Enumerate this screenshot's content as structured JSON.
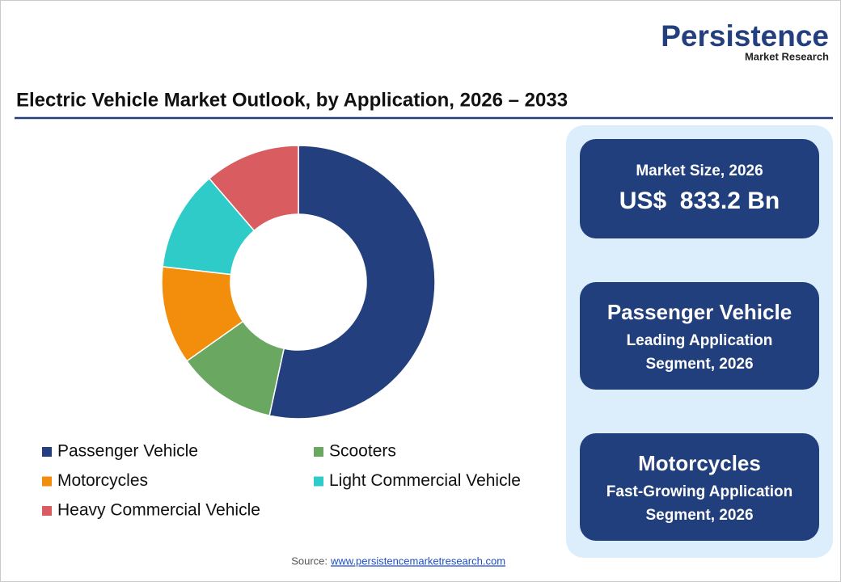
{
  "header": {
    "brand": "Persistence",
    "brand_sub": "Market Research"
  },
  "chart_data": {
    "type": "donut",
    "title": "Electric Vehicle Market Outlook, by Application, 2026 – 2033",
    "categories": [
      "Passenger Vehicle",
      "Scooters",
      "Motorcycles",
      "Light Commercial Vehicle",
      "Heavy Commercial Vehicle"
    ],
    "values": [
      53.4,
      11.8,
      11.6,
      11.9,
      11.3
    ],
    "colors": [
      "#243f7e",
      "#6aa862",
      "#f28e0b",
      "#2fcbc9",
      "#d85c60"
    ]
  },
  "cards": [
    [
      "Market Size, 2026",
      "US$  833.2 Bn"
    ],
    [
      "Passenger Vehicle",
      "Leading Application",
      "Segment, 2026"
    ],
    [
      "Motorcycles",
      "Fast-Growing Application",
      "Segment, 2026"
    ]
  ],
  "source": {
    "label": "Source:",
    "link": "www.persistencemarketresearch.com"
  }
}
